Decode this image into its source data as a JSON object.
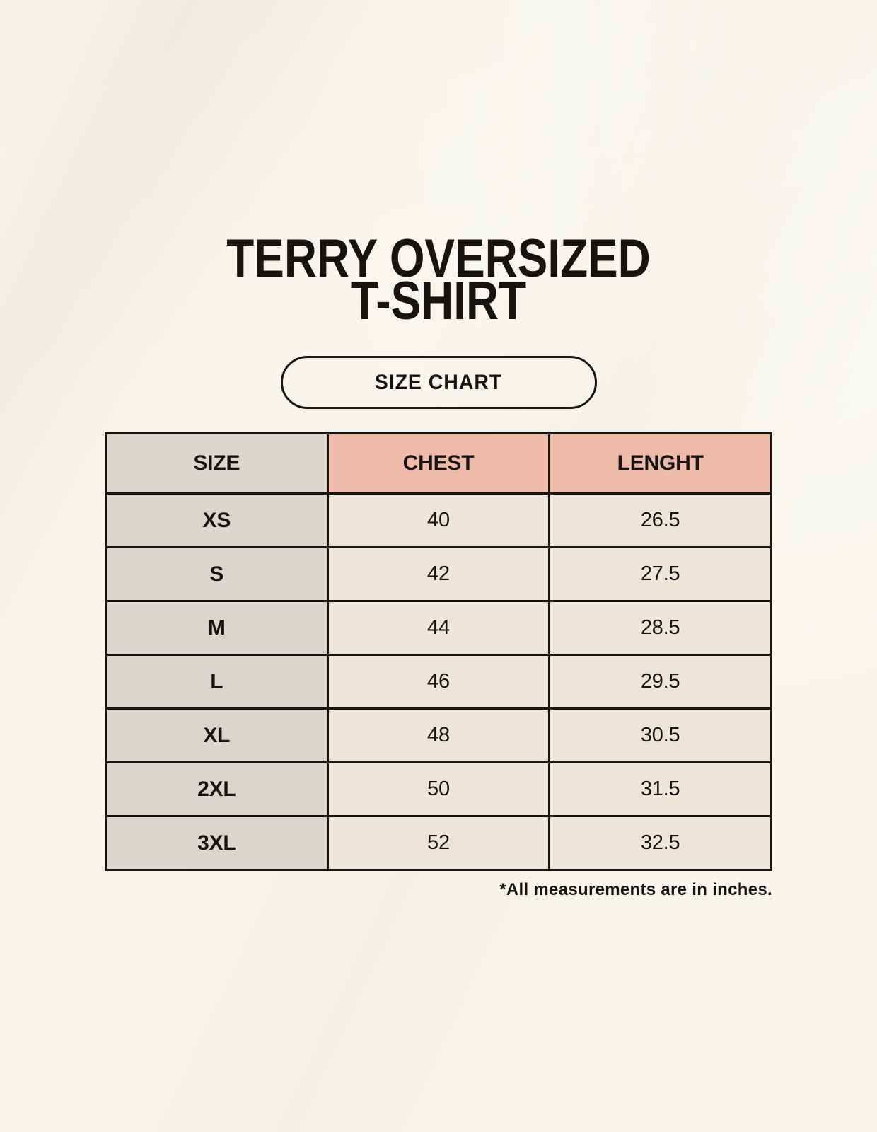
{
  "page": {
    "title_line1": "TERRY OVERSIZED",
    "title_line2": "T-SHIRT",
    "badge_label": "SIZE CHART",
    "footnote": "*All measurements are in inches."
  },
  "colors": {
    "page_bg": "#f8f5ee",
    "size_col_bg": "#dbd5cf",
    "accent_header_bg": "#eebbab",
    "value_cell_bg": "#ece5d9",
    "border": "#181512",
    "text": "#161310"
  },
  "chart_data": {
    "type": "table",
    "title": "TERRY OVERSIZED T-SHIRT",
    "subtitle": "SIZE CHART",
    "columns": [
      "SIZE",
      "CHEST",
      "LENGHT"
    ],
    "rows": [
      [
        "XS",
        "40",
        "26.5"
      ],
      [
        "S",
        "42",
        "27.5"
      ],
      [
        "M",
        "44",
        "28.5"
      ],
      [
        "L",
        "46",
        "29.5"
      ],
      [
        "XL",
        "48",
        "30.5"
      ],
      [
        "2XL",
        "50",
        "31.5"
      ],
      [
        "3XL",
        "52",
        "32.5"
      ]
    ],
    "units_note": "*All measurements are in inches."
  }
}
